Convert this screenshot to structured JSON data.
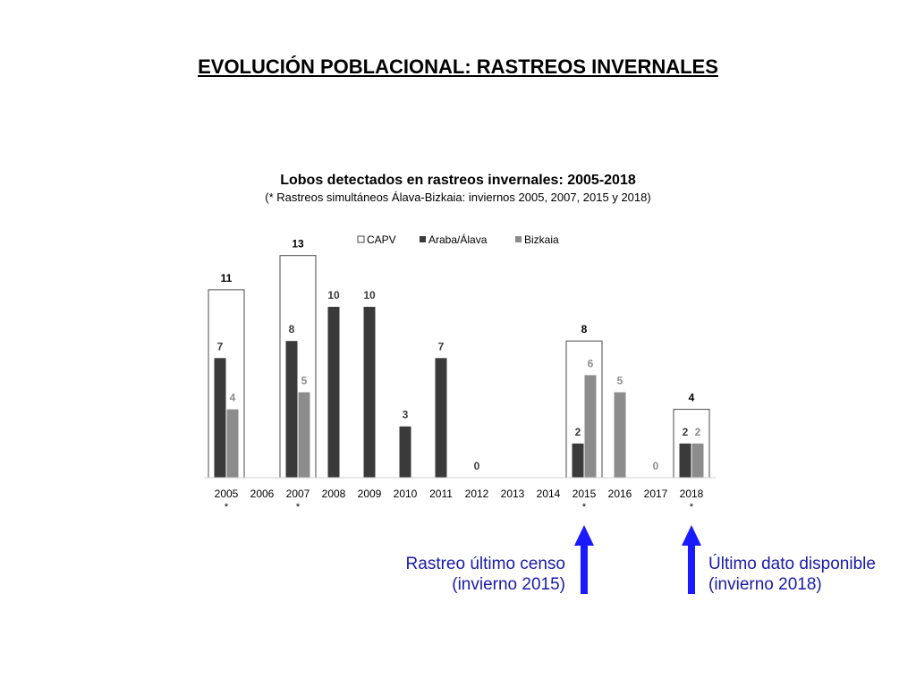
{
  "page": {
    "title": "EVOLUCIÓN POBLACIONAL: RASTREOS INVERNALES"
  },
  "chart_data": {
    "type": "bar",
    "title": "Lobos detectados en rastreos invernales: 2005-2018",
    "subtitle": "(* Rastreos simultáneos Álava-Bizkaia: inviernos 2005, 2007, 2015 y 2018)",
    "categories": [
      "2005",
      "2006",
      "2007",
      "2008",
      "2009",
      "2010",
      "2011",
      "2012",
      "2013",
      "2014",
      "2015",
      "2016",
      "2017",
      "2018"
    ],
    "category_marks": [
      "*",
      "",
      "*",
      "",
      "",
      "",
      "",
      "",
      "",
      "",
      "*",
      "",
      "",
      "*"
    ],
    "series": [
      {
        "name": "CAPV",
        "values": [
          11,
          null,
          13,
          null,
          null,
          null,
          null,
          null,
          null,
          null,
          8,
          null,
          null,
          4
        ],
        "color": "#ffffff"
      },
      {
        "name": "Araba/Álava",
        "values": [
          7,
          null,
          8,
          10,
          10,
          3,
          7,
          0,
          null,
          null,
          2,
          null,
          null,
          2
        ],
        "color": "#3a3a3a"
      },
      {
        "name": "Bizkaia",
        "values": [
          4,
          null,
          5,
          null,
          null,
          null,
          null,
          null,
          null,
          null,
          6,
          5,
          0,
          2
        ],
        "color": "#8c8c8c"
      }
    ],
    "ylim": [
      0,
      14
    ],
    "legend": "top",
    "grid": false
  },
  "annotations": {
    "left": {
      "line1": "Rastreo último censo",
      "line2": "(invierno 2015)",
      "color": "#1a1aa8",
      "arrow_color": "#1a1aff",
      "category": "2015"
    },
    "right": {
      "line1": "Último dato disponible",
      "line2": "(invierno 2018)",
      "color": "#1a1aa8",
      "arrow_color": "#1a1aff",
      "category": "2018"
    }
  }
}
